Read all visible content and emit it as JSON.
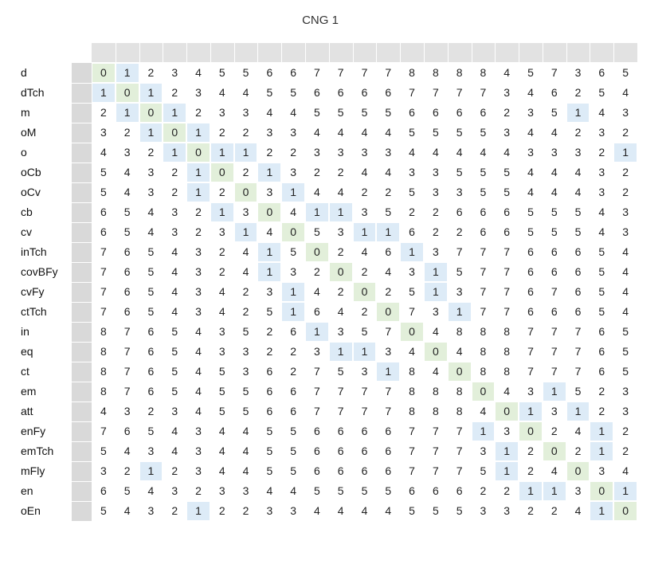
{
  "chart_data": {
    "type": "heatmap",
    "title": "CNG 1",
    "row_labels": [
      "d",
      "dTch",
      "m",
      "oM",
      "o",
      "oCb",
      "oCv",
      "cb",
      "cv",
      "inTch",
      "covBFy",
      "cvFy",
      "ctTch",
      "in",
      "eq",
      "ct",
      "em",
      "att",
      "enFy",
      "emTch",
      "mFly",
      "en",
      "oEn"
    ],
    "matrix": [
      [
        0,
        1,
        2,
        3,
        4,
        5,
        5,
        6,
        6,
        7,
        7,
        7,
        7,
        8,
        8,
        8,
        8,
        4,
        5,
        7,
        3,
        6,
        5
      ],
      [
        1,
        0,
        1,
        2,
        3,
        4,
        4,
        5,
        5,
        6,
        6,
        6,
        6,
        7,
        7,
        7,
        7,
        3,
        4,
        6,
        2,
        5,
        4
      ],
      [
        2,
        1,
        0,
        1,
        2,
        3,
        3,
        4,
        4,
        5,
        5,
        5,
        5,
        6,
        6,
        6,
        6,
        2,
        3,
        5,
        1,
        4,
        3
      ],
      [
        3,
        2,
        1,
        0,
        1,
        2,
        2,
        3,
        3,
        4,
        4,
        4,
        4,
        5,
        5,
        5,
        5,
        3,
        4,
        4,
        2,
        3,
        2
      ],
      [
        4,
        3,
        2,
        1,
        0,
        1,
        1,
        2,
        2,
        3,
        3,
        3,
        3,
        4,
        4,
        4,
        4,
        4,
        3,
        3,
        3,
        2,
        1
      ],
      [
        5,
        4,
        3,
        2,
        1,
        0,
        2,
        1,
        3,
        2,
        2,
        4,
        4,
        3,
        3,
        5,
        5,
        5,
        4,
        4,
        4,
        3,
        2
      ],
      [
        5,
        4,
        3,
        2,
        1,
        2,
        0,
        3,
        1,
        4,
        4,
        2,
        2,
        5,
        3,
        3,
        5,
        5,
        4,
        4,
        4,
        3,
        2
      ],
      [
        6,
        5,
        4,
        3,
        2,
        1,
        3,
        0,
        4,
        1,
        1,
        3,
        5,
        2,
        2,
        6,
        6,
        6,
        5,
        5,
        5,
        4,
        3
      ],
      [
        6,
        5,
        4,
        3,
        2,
        3,
        1,
        4,
        0,
        5,
        3,
        1,
        1,
        6,
        2,
        2,
        6,
        6,
        5,
        5,
        5,
        4,
        3
      ],
      [
        7,
        6,
        5,
        4,
        3,
        2,
        4,
        1,
        5,
        0,
        2,
        4,
        6,
        1,
        3,
        7,
        7,
        7,
        6,
        6,
        6,
        5,
        4
      ],
      [
        7,
        6,
        5,
        4,
        3,
        2,
        4,
        1,
        3,
        2,
        0,
        2,
        4,
        3,
        1,
        5,
        7,
        7,
        6,
        6,
        6,
        5,
        4
      ],
      [
        7,
        6,
        5,
        4,
        3,
        4,
        2,
        3,
        1,
        4,
        2,
        0,
        2,
        5,
        1,
        3,
        7,
        7,
        6,
        7,
        6,
        5,
        4
      ],
      [
        7,
        6,
        5,
        4,
        3,
        4,
        2,
        5,
        1,
        6,
        4,
        2,
        0,
        7,
        3,
        1,
        7,
        7,
        6,
        6,
        6,
        5,
        4
      ],
      [
        8,
        7,
        6,
        5,
        4,
        3,
        5,
        2,
        6,
        1,
        3,
        5,
        7,
        0,
        4,
        8,
        8,
        8,
        7,
        7,
        7,
        6,
        5
      ],
      [
        8,
        7,
        6,
        5,
        4,
        3,
        3,
        2,
        2,
        3,
        1,
        1,
        3,
        4,
        0,
        4,
        8,
        8,
        7,
        7,
        7,
        6,
        5
      ],
      [
        8,
        7,
        6,
        5,
        4,
        5,
        3,
        6,
        2,
        7,
        5,
        3,
        1,
        8,
        4,
        0,
        8,
        8,
        7,
        7,
        7,
        6,
        5
      ],
      [
        8,
        7,
        6,
        5,
        4,
        5,
        5,
        6,
        6,
        7,
        7,
        7,
        7,
        8,
        8,
        8,
        0,
        4,
        3,
        1,
        5,
        2,
        3
      ],
      [
        4,
        3,
        2,
        3,
        4,
        5,
        5,
        6,
        6,
        7,
        7,
        7,
        7,
        8,
        8,
        8,
        4,
        0,
        1,
        3,
        1,
        2,
        3
      ],
      [
        7,
        6,
        5,
        4,
        3,
        4,
        4,
        5,
        5,
        6,
        6,
        6,
        6,
        7,
        7,
        7,
        1,
        3,
        0,
        2,
        4,
        1,
        2
      ],
      [
        5,
        4,
        3,
        4,
        3,
        4,
        4,
        5,
        5,
        6,
        6,
        6,
        6,
        7,
        7,
        7,
        3,
        1,
        2,
        0,
        2,
        1,
        2
      ],
      [
        3,
        2,
        1,
        2,
        3,
        4,
        4,
        5,
        5,
        6,
        6,
        6,
        6,
        7,
        7,
        7,
        5,
        1,
        2,
        4,
        0,
        3,
        4
      ],
      [
        6,
        5,
        4,
        3,
        2,
        3,
        3,
        4,
        4,
        5,
        5,
        5,
        5,
        6,
        6,
        6,
        2,
        2,
        1,
        1,
        3,
        0,
        1
      ],
      [
        5,
        4,
        3,
        2,
        1,
        2,
        2,
        3,
        3,
        4,
        4,
        4,
        4,
        5,
        5,
        5,
        3,
        3,
        2,
        2,
        4,
        1,
        0
      ]
    ],
    "colors": {
      "diagonal": "#e2efda",
      "value_one": "#ddebf7",
      "header": "#e2e2e2",
      "row_gutter": "#d9d9d9"
    },
    "grid": false
  }
}
